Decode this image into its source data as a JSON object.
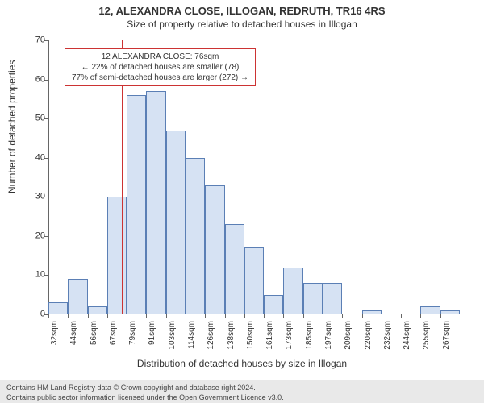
{
  "titles": {
    "line1": "12, ALEXANDRA CLOSE, ILLOGAN, REDRUTH, TR16 4RS",
    "line2": "Size of property relative to detached houses in Illogan"
  },
  "chart": {
    "type": "histogram",
    "background_color": "#ffffff",
    "bar_fill": "#d6e2f3",
    "bar_stroke": "#5b7fb5",
    "bar_stroke_width": 1,
    "axis_color": "#666666",
    "tick_fontsize": 11,
    "xtick_fontsize": 10,
    "label_fontsize": 12,
    "ylabel": "Number of detached properties",
    "xlabel": "Distribution of detached houses by size in Illogan",
    "ylim": [
      0,
      70
    ],
    "ytick_step": 10,
    "yticks": [
      0,
      10,
      20,
      30,
      40,
      50,
      60,
      70
    ],
    "xtick_labels": [
      "32sqm",
      "44sqm",
      "56sqm",
      "67sqm",
      "79sqm",
      "91sqm",
      "103sqm",
      "114sqm",
      "126sqm",
      "138sqm",
      "150sqm",
      "161sqm",
      "173sqm",
      "185sqm",
      "197sqm",
      "209sqm",
      "220sqm",
      "232sqm",
      "244sqm",
      "255sqm",
      "267sqm"
    ],
    "values": [
      3,
      9,
      2,
      30,
      56,
      57,
      47,
      40,
      33,
      23,
      17,
      5,
      12,
      8,
      8,
      0,
      1,
      0,
      0,
      2,
      1
    ],
    "marker": {
      "x_value": 76,
      "x_min": 32,
      "x_max": 279,
      "color": "#cc3333",
      "width": 1
    }
  },
  "annotation": {
    "border_color": "#cc3333",
    "line1": "12 ALEXANDRA CLOSE: 76sqm",
    "line2": "← 22% of detached houses are smaller (78)",
    "line3": "77% of semi-detached houses are larger (272) →"
  },
  "footer": {
    "line1": "Contains HM Land Registry data © Crown copyright and database right 2024.",
    "line2": "Contains public sector information licensed under the Open Government Licence v3.0."
  }
}
